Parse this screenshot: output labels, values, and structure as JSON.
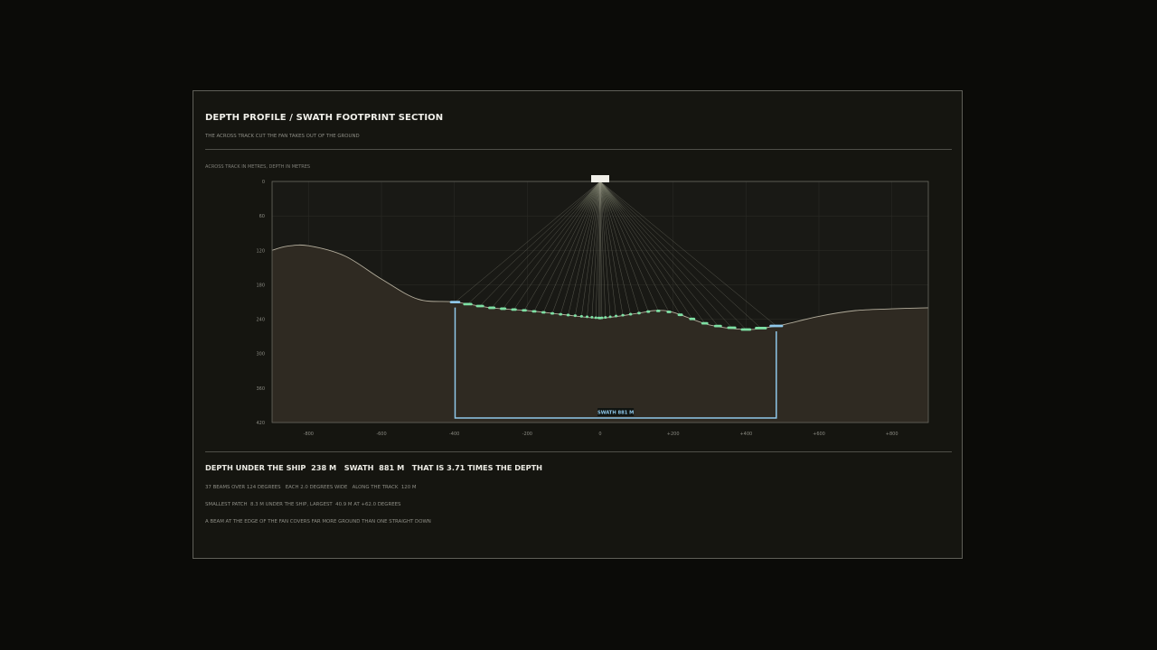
{
  "panel": {
    "title": "DEPTH PROFILE / SWATH FOOTPRINT SECTION",
    "subtitle": "THE ACROSS TRACK CUT THE FAN TAKES OUT OF THE GROUND",
    "axes_note": "ACROSS TRACK IN METRES, DEPTH IN METRES"
  },
  "chart_data": {
    "type": "area",
    "x_ticks": [
      "-800",
      "-600",
      "-400",
      "-200",
      "0",
      "+200",
      "+400",
      "+600",
      "+800"
    ],
    "y_ticks": [
      "0",
      "60",
      "120",
      "180",
      "240",
      "300",
      "360",
      "420"
    ],
    "xlim": [
      -900,
      900
    ],
    "ylim": [
      0,
      420
    ],
    "seafloor": {
      "x": [
        -900,
        -860,
        -800,
        -700,
        -600,
        -500,
        -400,
        -300,
        -200,
        -100,
        0,
        100,
        150,
        200,
        300,
        400,
        450,
        500,
        600,
        700,
        800,
        900
      ],
      "depth": [
        120,
        113,
        112,
        130,
        170,
        205,
        210,
        220,
        225,
        232,
        238,
        230,
        225,
        228,
        250,
        258,
        255,
        250,
        235,
        225,
        222,
        220
      ]
    },
    "swath": {
      "label": "SWATH  881 M",
      "left_x": -398,
      "right_x": 483
    },
    "beams": {
      "count": 37,
      "origin_x": 0,
      "origin_depth": 0
    },
    "colors": {
      "seafloor_fill": "#2f2a22",
      "seafloor_line": "#b3ad9c",
      "beam_line": "#9c9c8a",
      "footprint": "#7ee0a4",
      "swath": "#8fc8ea",
      "ship": "#f0efe8"
    }
  },
  "stats": {
    "main": "DEPTH UNDER THE SHIP  238 M   SWATH  881 M   THAT IS 3.71 TIMES THE DEPTH",
    "line1": "37 BEAMS OVER 124 DEGREES   EACH 2.0 DEGREES WIDE   ALONG THE TRACK  120 M",
    "line2": "SMALLEST PATCH  8.3 M UNDER THE SHIP, LARGEST  40.9 M AT +62.0 DEGREES",
    "line3": "A BEAM AT THE EDGE OF THE FAN COVERS FAR MORE GROUND THAN ONE STRAIGHT DOWN"
  }
}
